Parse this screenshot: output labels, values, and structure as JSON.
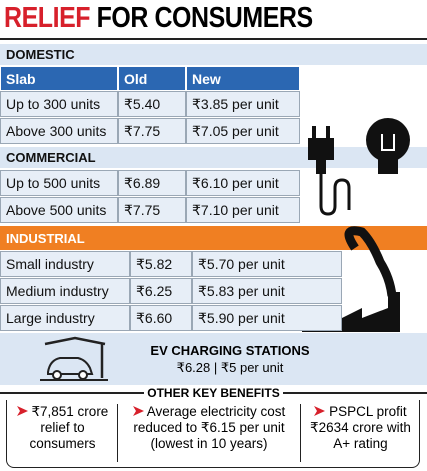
{
  "title": {
    "highlight": "RELIEF",
    "rest": "FOR CONSUMERS"
  },
  "domestic": {
    "label": "DOMESTIC",
    "header": [
      "Slab",
      "Old",
      "New"
    ],
    "rows": [
      [
        "Up to 300 units",
        "₹5.40",
        "₹3.85 per unit"
      ],
      [
        "Above 300 units",
        "₹7.75",
        "₹7.05 per unit"
      ]
    ]
  },
  "commercial": {
    "label": "COMMERCIAL",
    "rows": [
      [
        "Up to 500 units",
        "₹6.89",
        "₹6.10 per unit"
      ],
      [
        "Above 500 units",
        "₹7.75",
        "₹7.10 per unit"
      ]
    ]
  },
  "industrial": {
    "label": "INDUSTRIAL",
    "rows": [
      [
        "Small industry",
        "₹5.82",
        "₹5.70 per unit"
      ],
      [
        "Medium industry",
        "₹6.25",
        "₹5.83 per unit"
      ],
      [
        "Large industry",
        "₹6.60",
        "₹5.90 per unit"
      ]
    ]
  },
  "ev": {
    "label": "EV CHARGING STATIONS",
    "rates": "₹6.28 | ₹5 per unit"
  },
  "benefits": {
    "title": "OTHER KEY BENEFITS",
    "items": [
      "₹7,851 crore relief to consumers",
      "Average electricity cost reduced to ₹6.15 per unit (lowest in 10 years)",
      "PSPCL profit ₹2634 crore with A+ rating"
    ]
  }
}
